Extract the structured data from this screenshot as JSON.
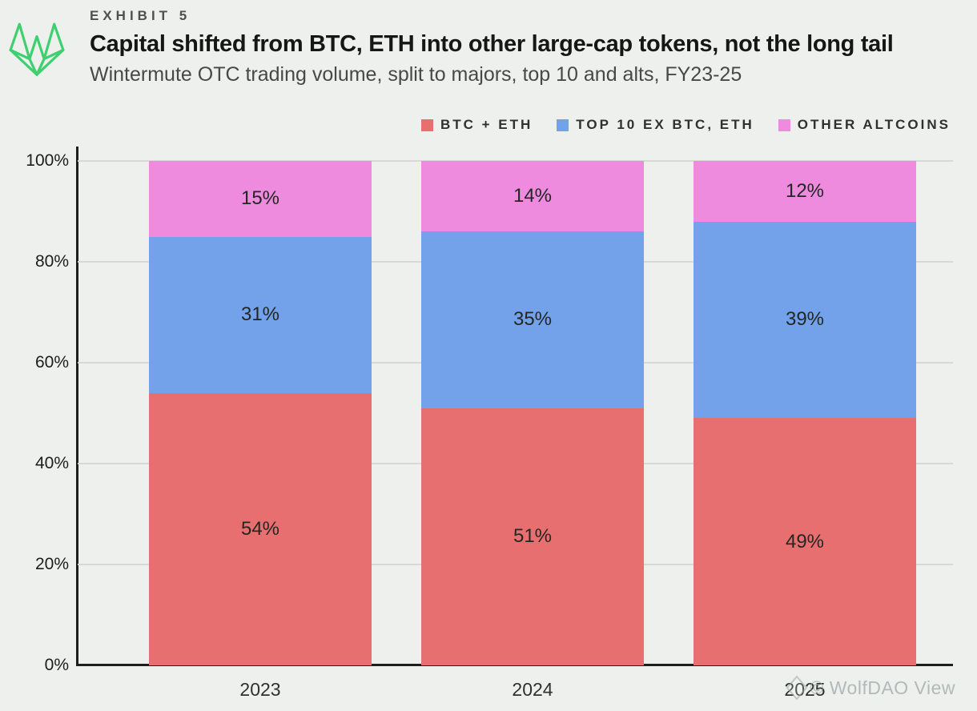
{
  "header": {
    "exhibit_label": "EXHIBIT 5"
  },
  "chart_data": {
    "type": "bar",
    "stacked": true,
    "title": "Capital shifted from BTC, ETH into other large-cap tokens, not the long tail",
    "subtitle": "Wintermute OTC trading volume, split to majors, top 10 and alts, FY23-25",
    "categories": [
      "2023",
      "2024",
      "2025"
    ],
    "series": [
      {
        "name": "BTC + ETH",
        "color": "#e86f70",
        "values": [
          54,
          51,
          49
        ]
      },
      {
        "name": "TOP 10 EX BTC, ETH",
        "color": "#73a1ea",
        "values": [
          31,
          35,
          39
        ]
      },
      {
        "name": "OTHER ALTCOINS",
        "color": "#ee8bde",
        "values": [
          15,
          14,
          12
        ]
      }
    ],
    "value_suffix": "%",
    "ylim": [
      0,
      100
    ],
    "yticks": [
      0,
      20,
      40,
      60,
      80,
      100
    ],
    "ytick_suffix": "%",
    "grid": "horizontal",
    "legend_position": "top-right"
  },
  "watermark": {
    "icon": "diamond-icon",
    "text": "© WolfDAO View"
  },
  "colors": {
    "background": "#edf0ed",
    "axis": "#1d1f1d",
    "gridline": "#d6dad5",
    "logo_green": "#3ecf6e",
    "watermark_gray": "#9ea7a8"
  }
}
